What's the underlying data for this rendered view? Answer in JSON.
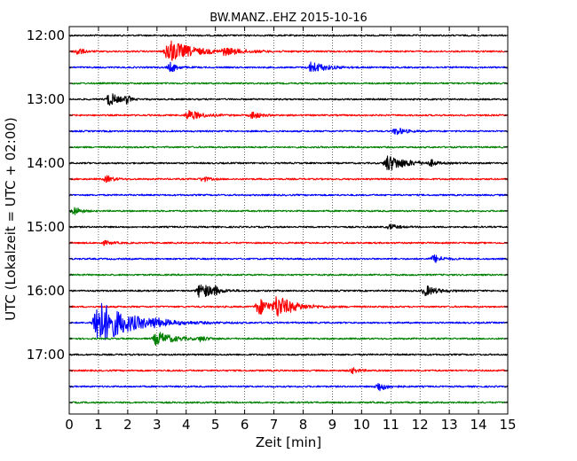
{
  "chart_data": {
    "type": "line",
    "title": "BW.MANZ..EHZ 2015-10-16",
    "xlabel": "Zeit  [min]",
    "ylabel": "UTC (Lokalzeit = UTC + 02:00)",
    "xlim": [
      0,
      15
    ],
    "x_ticks": [
      "0",
      "1",
      "2",
      "3",
      "4",
      "5",
      "6",
      "7",
      "8",
      "9",
      "10",
      "11",
      "12",
      "13",
      "14",
      "15"
    ],
    "y_ticks": [
      {
        "label": "12:00",
        "row": 0
      },
      {
        "label": "13:00",
        "row": 4
      },
      {
        "label": "14:00",
        "row": 8
      },
      {
        "label": "15:00",
        "row": 12
      },
      {
        "label": "16:00",
        "row": 16
      },
      {
        "label": "17:00",
        "row": 20
      }
    ],
    "grid": "vertical dotted lines at each minute",
    "row_duration_min": 15,
    "colors": [
      "#000000",
      "#ff0000",
      "#0000ff",
      "#008000"
    ],
    "rows": [
      {
        "start": "12:00",
        "color": "#000000",
        "events": []
      },
      {
        "start": "12:15",
        "color": "#ff0000",
        "events": [
          {
            "t": 0.3,
            "amp": 0.3,
            "dur": 0.4
          },
          {
            "t": 3.4,
            "amp": 0.95,
            "dur": 1.6
          },
          {
            "t": 5.3,
            "amp": 0.3,
            "dur": 1.5
          }
        ]
      },
      {
        "start": "12:30",
        "color": "#0000ff",
        "events": [
          {
            "t": 3.5,
            "amp": 0.4,
            "dur": 0.4
          },
          {
            "t": 8.3,
            "amp": 0.45,
            "dur": 1.0
          }
        ]
      },
      {
        "start": "12:45",
        "color": "#008000",
        "events": []
      },
      {
        "start": "13:00",
        "color": "#000000",
        "events": [
          {
            "t": 1.4,
            "amp": 0.55,
            "dur": 0.6
          },
          {
            "t": 2.0,
            "amp": 0.4,
            "dur": 0.2
          }
        ]
      },
      {
        "start": "13:15",
        "color": "#ff0000",
        "events": [
          {
            "t": 4.1,
            "amp": 0.4,
            "dur": 0.9
          },
          {
            "t": 6.3,
            "amp": 0.3,
            "dur": 0.5
          }
        ]
      },
      {
        "start": "13:30",
        "color": "#0000ff",
        "events": [
          {
            "t": 11.2,
            "amp": 0.3,
            "dur": 0.6
          }
        ]
      },
      {
        "start": "13:45",
        "color": "#008000",
        "events": []
      },
      {
        "start": "14:00",
        "color": "#000000",
        "events": [
          {
            "t": 10.9,
            "amp": 0.65,
            "dur": 1.3
          },
          {
            "t": 12.4,
            "amp": 0.25,
            "dur": 0.4
          }
        ]
      },
      {
        "start": "14:15",
        "color": "#ff0000",
        "events": [
          {
            "t": 1.3,
            "amp": 0.25,
            "dur": 0.5
          },
          {
            "t": 4.6,
            "amp": 0.2,
            "dur": 0.4
          }
        ]
      },
      {
        "start": "14:30",
        "color": "#0000ff",
        "events": []
      },
      {
        "start": "14:45",
        "color": "#008000",
        "events": [
          {
            "t": 0.2,
            "amp": 0.35,
            "dur": 0.4
          }
        ]
      },
      {
        "start": "15:00",
        "color": "#000000",
        "events": [
          {
            "t": 11.0,
            "amp": 0.2,
            "dur": 0.5
          }
        ]
      },
      {
        "start": "15:15",
        "color": "#ff0000",
        "events": [
          {
            "t": 1.2,
            "amp": 0.15,
            "dur": 0.6
          }
        ]
      },
      {
        "start": "15:30",
        "color": "#0000ff",
        "events": [
          {
            "t": 12.5,
            "amp": 0.3,
            "dur": 0.6
          }
        ]
      },
      {
        "start": "15:45",
        "color": "#008000",
        "events": []
      },
      {
        "start": "16:00",
        "color": "#000000",
        "events": [
          {
            "t": 4.5,
            "amp": 0.65,
            "dur": 0.9
          },
          {
            "t": 5.0,
            "amp": 0.45,
            "dur": 0.3
          },
          {
            "t": 12.2,
            "amp": 0.4,
            "dur": 0.8
          }
        ]
      },
      {
        "start": "16:15",
        "color": "#ff0000",
        "events": [
          {
            "t": 6.5,
            "amp": 0.65,
            "dur": 1.0
          },
          {
            "t": 7.1,
            "amp": 0.95,
            "dur": 1.2
          }
        ]
      },
      {
        "start": "16:30",
        "color": "#0000ff",
        "events": [
          {
            "t": 0.95,
            "amp": 1.9,
            "dur": 2.2
          },
          {
            "t": 2.9,
            "amp": 0.45,
            "dur": 1.2
          }
        ]
      },
      {
        "start": "16:45",
        "color": "#008000",
        "events": [
          {
            "t": 3.0,
            "amp": 0.55,
            "dur": 1.2
          },
          {
            "t": 4.5,
            "amp": 0.2,
            "dur": 0.6
          }
        ]
      },
      {
        "start": "17:00",
        "color": "#000000",
        "events": []
      },
      {
        "start": "17:15",
        "color": "#ff0000",
        "events": [
          {
            "t": 9.7,
            "amp": 0.2,
            "dur": 0.5
          }
        ]
      },
      {
        "start": "17:30",
        "color": "#0000ff",
        "events": [
          {
            "t": 10.6,
            "amp": 0.35,
            "dur": 0.6
          }
        ]
      },
      {
        "start": "17:45",
        "color": "#008000",
        "events": []
      }
    ]
  }
}
